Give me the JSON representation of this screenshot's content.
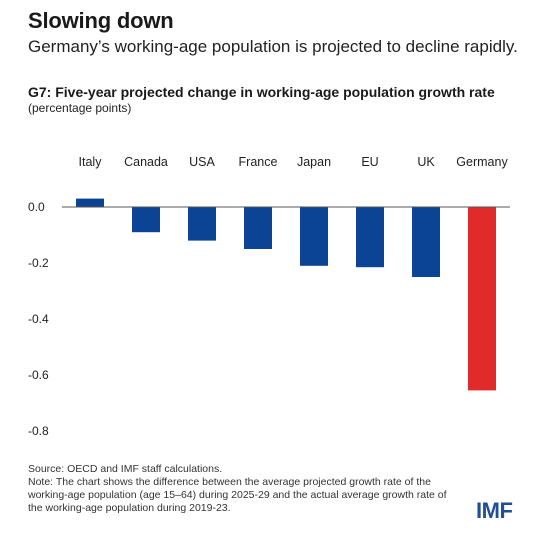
{
  "header": {
    "title": "Slowing down",
    "subtitle": "Germany’s working-age population is projected to decline rapidly."
  },
  "chart_data": {
    "type": "bar",
    "title": "G7: Five-year projected change in working-age population growth rate",
    "units": "(percentage points)",
    "categories": [
      "Italy",
      "Canada",
      "USA",
      "France",
      "Japan",
      "EU",
      "UK",
      "Germany"
    ],
    "values": [
      0.03,
      -0.09,
      -0.12,
      -0.15,
      -0.21,
      -0.215,
      -0.25,
      -0.655
    ],
    "ylim": [
      -0.8,
      0.0
    ],
    "yticks": [
      0.0,
      -0.2,
      -0.4,
      -0.6,
      -0.8
    ],
    "ytick_labels": [
      "0.0",
      "-0.2",
      "-0.4",
      "-0.6",
      "-0.8"
    ],
    "colors": {
      "default": "#0b4494",
      "highlight": "#e12a2a"
    },
    "highlight": "Germany",
    "category_labels_position": "top",
    "grid": false
  },
  "footer": {
    "source": "Source: OECD and IMF staff calculations.",
    "note": "Note: The chart shows the difference between the average projected growth rate of the working-age population (age 15–64) during 2025-29 and the actual average growth rate of the working-age population during 2019-23.",
    "logo": "IMF"
  }
}
